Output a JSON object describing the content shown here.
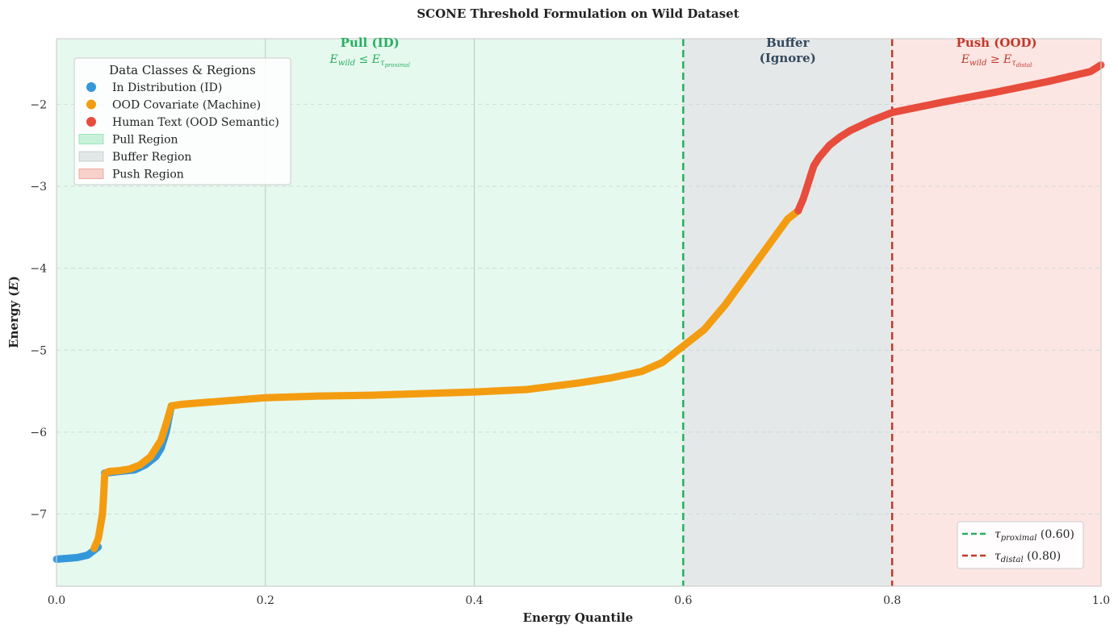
{
  "chart_data": {
    "type": "scatter",
    "title": "SCONE Threshold Formulation on Wild Dataset",
    "xlabel": "Energy Quantile",
    "ylabel": "Energy (E)",
    "xlim": [
      0,
      1
    ],
    "ylim": [
      -7.88,
      -1.2
    ],
    "grid": true,
    "x_ticks": [
      "0.0",
      "0.2",
      "0.4",
      "0.6",
      "0.8",
      "1.0"
    ],
    "y_ticks": [
      "−7",
      "−6",
      "−5",
      "−4",
      "−3",
      "−2"
    ],
    "series": [
      {
        "name": "In Distribution (ID)",
        "color": "#3498db",
        "segments": [
          {
            "x": [
              0.0,
              0.01,
              0.02,
              0.03,
              0.035,
              0.04
            ],
            "y": [
              -7.55,
              -7.54,
              -7.53,
              -7.5,
              -7.45,
              -7.4
            ]
          },
          {
            "x": [
              0.046,
              0.06,
              0.075,
              0.085,
              0.095,
              0.1,
              0.105,
              0.108,
              0.11
            ],
            "y": [
              -6.5,
              -6.48,
              -6.46,
              -6.4,
              -6.3,
              -6.2,
              -6.0,
              -5.8,
              -5.68
            ]
          }
        ]
      },
      {
        "name": "OOD Covariate (Machine)",
        "color": "#f39c12",
        "segments": [
          {
            "x": [
              0.036,
              0.04,
              0.042,
              0.044,
              0.045,
              0.046,
              0.047,
              0.05,
              0.06,
              0.07,
              0.08,
              0.09,
              0.1,
              0.105,
              0.11,
              0.12,
              0.15,
              0.2,
              0.25,
              0.3,
              0.35,
              0.4,
              0.45,
              0.5,
              0.53,
              0.56,
              0.58,
              0.6,
              0.62,
              0.64,
              0.66,
              0.68,
              0.7,
              0.71
            ],
            "y": [
              -7.42,
              -7.3,
              -7.15,
              -7.0,
              -6.8,
              -6.55,
              -6.5,
              -6.48,
              -6.47,
              -6.45,
              -6.4,
              -6.3,
              -6.1,
              -5.9,
              -5.68,
              -5.66,
              -5.63,
              -5.58,
              -5.56,
              -5.55,
              -5.53,
              -5.51,
              -5.48,
              -5.4,
              -5.34,
              -5.26,
              -5.15,
              -4.95,
              -4.75,
              -4.45,
              -4.1,
              -3.75,
              -3.4,
              -3.3
            ]
          }
        ]
      },
      {
        "name": "Human Text (OOD Semantic)",
        "color": "#e74c3c",
        "segments": [
          {
            "x": [
              0.71,
              0.715,
              0.72,
              0.725,
              0.73,
              0.74,
              0.75,
              0.76,
              0.78,
              0.8,
              0.85,
              0.9,
              0.95,
              0.99,
              1.0
            ],
            "y": [
              -3.3,
              -3.15,
              -2.95,
              -2.75,
              -2.65,
              -2.5,
              -2.4,
              -2.32,
              -2.2,
              -2.1,
              -1.97,
              -1.85,
              -1.72,
              -1.6,
              -1.52
            ]
          }
        ]
      }
    ],
    "regions": [
      {
        "name": "Pull Region",
        "label": "Pull (ID)",
        "label2": "",
        "formula": "E_wild ≤ E_τ_proximal",
        "x0": 0.0,
        "x1": 0.6,
        "color": "#2ecc71",
        "text_color": "#27ae60"
      },
      {
        "name": "Buffer Region",
        "label": "Buffer",
        "label2": "(Ignore)",
        "formula": "",
        "x0": 0.6,
        "x1": 0.8,
        "color": "#95a5a6",
        "text_color": "#34495e"
      },
      {
        "name": "Push Region",
        "label": "Push (OOD)",
        "label2": "",
        "formula": "E_wild ≥ E_τ_distal",
        "x0": 0.8,
        "x1": 1.0,
        "color": "#e74c3c",
        "text_color": "#c0392b"
      }
    ],
    "thresholds": [
      {
        "name": "τ proximal (0.60)",
        "x": 0.6,
        "color": "#27ae60"
      },
      {
        "name": "τ distal (0.80)",
        "x": 0.8,
        "color": "#c0392b"
      }
    ],
    "legend": {
      "title": "Data Classes & Regions",
      "placement": "upper-left",
      "threshold_placement": "lower-right"
    }
  }
}
